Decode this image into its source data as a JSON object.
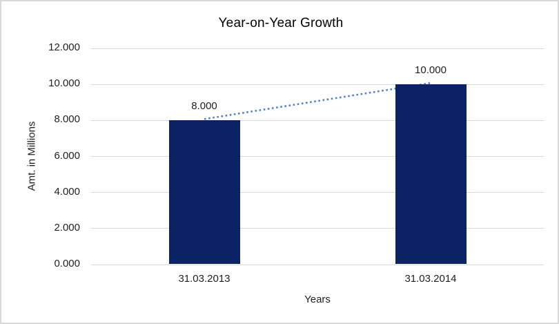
{
  "chart_data": {
    "type": "bar",
    "title": "Year-on-Year Growth",
    "xlabel": "Years",
    "ylabel": "Amt. in Millions",
    "categories": [
      "31.03.2013",
      "31.03.2014"
    ],
    "series": [
      {
        "name": "amount-bars",
        "type": "bar",
        "values": [
          8000,
          10000
        ]
      },
      {
        "name": "trend",
        "type": "dotted-line",
        "values": [
          8000,
          10000
        ]
      }
    ],
    "data_labels": [
      "8.000",
      "10.000"
    ],
    "ylim": [
      0,
      12000
    ],
    "ytick_step": 2000,
    "ytick_labels": [
      "0.000",
      "2.000",
      "4.000",
      "6.000",
      "8.000",
      "10.000",
      "12.000"
    ],
    "grid": true,
    "legend": "none",
    "number_format": "thousands separated by period",
    "colors": {
      "bar": "#0B2265",
      "trend_line": "#5082C8",
      "gridline": "#D9D9D9",
      "text": "#1F1F1F",
      "title_text": "#000000",
      "border": "#D9D9D9",
      "background": "#FFFFFF"
    }
  }
}
